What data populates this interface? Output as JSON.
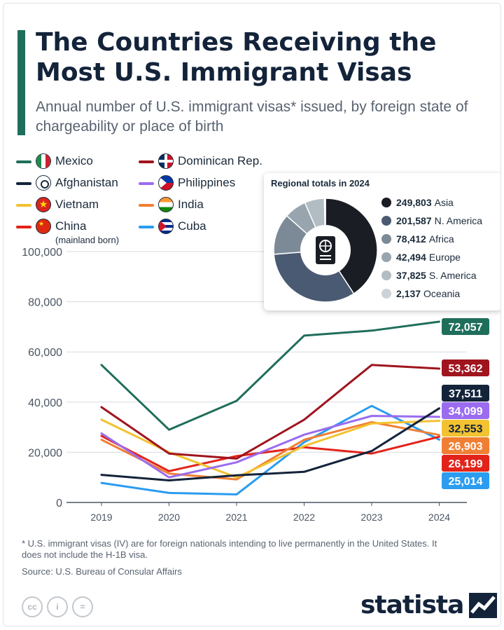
{
  "header": {
    "title": "The Countries Receiving the Most U.S. Immigrant Visas",
    "subtitle": "Annual number of U.S. immigrant visas* issued, by foreign state of chargeability or place of birth"
  },
  "chart_data": {
    "type": "line",
    "x": [
      2019,
      2020,
      2021,
      2022,
      2023,
      2024
    ],
    "ylim": [
      0,
      100000
    ],
    "yticks": [
      0,
      20000,
      40000,
      60000,
      80000,
      100000
    ],
    "ytick_labels": [
      "0",
      "20,000",
      "40,000",
      "60,000",
      "80,000",
      "100,000"
    ],
    "xtick_labels": [
      "2019",
      "2020",
      "2021",
      "2022",
      "2023",
      "2024"
    ],
    "grid": true,
    "legend_position": "top-left",
    "series": [
      {
        "name": "Mexico",
        "color": "#1f6e5b",
        "values": [
          54800,
          29000,
          40500,
          66500,
          68500,
          72057
        ],
        "end_label": "72,057"
      },
      {
        "name": "Dominican Rep.",
        "color": "#a0141e",
        "values": [
          38000,
          19500,
          17500,
          33000,
          54800,
          53362
        ],
        "end_label": "53,362"
      },
      {
        "name": "Afghanistan",
        "color": "#13233a",
        "values": [
          11000,
          8800,
          10800,
          12200,
          20500,
          37511
        ],
        "end_label": "37,511"
      },
      {
        "name": "Philippines",
        "color": "#9b6cf0",
        "values": [
          27500,
          10000,
          16000,
          27000,
          34500,
          34099
        ],
        "end_label": "34,099"
      },
      {
        "name": "Vietnam",
        "color": "#f2c230",
        "values": [
          33000,
          20000,
          10000,
          22500,
          31500,
          32553
        ],
        "end_label": "32,553"
      },
      {
        "name": "India",
        "color": "#f07f34",
        "values": [
          25000,
          11500,
          9200,
          25000,
          32000,
          26903
        ],
        "end_label": "26,903"
      },
      {
        "name": "China",
        "note": "(mainland born)",
        "color": "#e2231a",
        "values": [
          26500,
          12500,
          18500,
          22000,
          19500,
          26199
        ],
        "end_label": "26,199"
      },
      {
        "name": "Cuba",
        "color": "#2b9cf0",
        "values": [
          7800,
          3800,
          3200,
          24000,
          38500,
          25014
        ],
        "end_label": "25,014"
      }
    ]
  },
  "inset": {
    "title": "Regional totals in 2024",
    "type": "pie",
    "slices": [
      {
        "value": 249803,
        "value_label": "249,803",
        "label": "Asia",
        "color": "#1a1d24"
      },
      {
        "value": 201587,
        "value_label": "201,587",
        "label": "N. America",
        "color": "#4b5a73"
      },
      {
        "value": 78412,
        "value_label": "78,412",
        "label": "Africa",
        "color": "#7c8a98"
      },
      {
        "value": 42494,
        "value_label": "42,494",
        "label": "Europe",
        "color": "#98a5ae"
      },
      {
        "value": 37825,
        "value_label": "37,825",
        "label": "S. America",
        "color": "#b1bcc3"
      },
      {
        "value": 2137,
        "value_label": "2,137",
        "label": "Oceania",
        "color": "#cbd3d8"
      }
    ],
    "center_icon": "passport-icon"
  },
  "footer": {
    "footnote": "* U.S. immigrant visas (IV) are for foreign nationals intending to live permanently in the United States. It does not include the H-1B visa.",
    "source": "Source: U.S. Bureau of Consular Affairs",
    "license_icons": [
      "cc-icon",
      "by-icon",
      "nd-icon"
    ],
    "license_glyphs": [
      "cc",
      "i",
      "="
    ],
    "brand": "statista"
  }
}
